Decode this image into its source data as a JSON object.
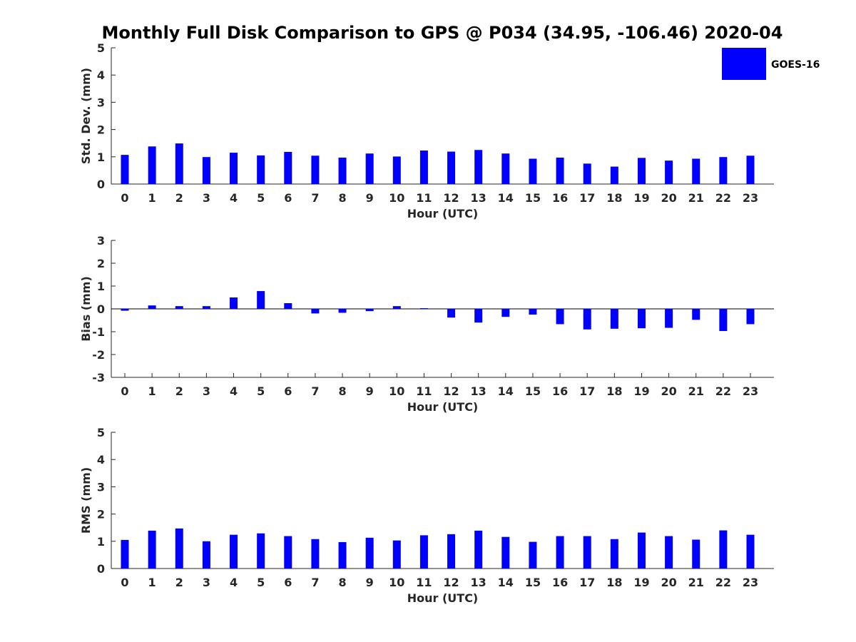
{
  "chart_data": {
    "title": "Monthly Full Disk Comparison to GPS @ P034 (34.95, -106.46) 2020-04",
    "legend": {
      "label": "GOES-16",
      "color": "#0000ff",
      "placement": "top-right"
    },
    "bar_color": "#0000ff",
    "panels": [
      {
        "type": "bar",
        "name": "std-dev",
        "xlabel": "Hour (UTC)",
        "ylabel": "Std. Dev. (mm)",
        "ylim": [
          0,
          5
        ],
        "yticks": [
          0,
          1,
          2,
          3,
          4,
          5
        ],
        "categories": [
          "0",
          "1",
          "2",
          "3",
          "4",
          "5",
          "6",
          "7",
          "8",
          "9",
          "10",
          "11",
          "12",
          "13",
          "14",
          "15",
          "16",
          "17",
          "18",
          "19",
          "20",
          "21",
          "22",
          "23"
        ],
        "values": [
          1.07,
          1.38,
          1.49,
          0.99,
          1.15,
          1.05,
          1.18,
          1.04,
          0.97,
          1.12,
          1.01,
          1.23,
          1.19,
          1.25,
          1.12,
          0.93,
          0.97,
          0.75,
          0.64,
          0.96,
          0.86,
          0.93,
          0.99,
          1.04
        ]
      },
      {
        "type": "bar",
        "name": "bias",
        "xlabel": "Hour (UTC)",
        "ylabel": "Bias (mm)",
        "ylim": [
          -3,
          3
        ],
        "yticks": [
          -3,
          -2,
          -1,
          0,
          1,
          2,
          3
        ],
        "categories": [
          "0",
          "1",
          "2",
          "3",
          "4",
          "5",
          "6",
          "7",
          "8",
          "9",
          "10",
          "11",
          "12",
          "13",
          "14",
          "15",
          "16",
          "17",
          "18",
          "19",
          "20",
          "21",
          "22",
          "23"
        ],
        "values": [
          -0.08,
          0.15,
          0.12,
          0.12,
          0.5,
          0.78,
          0.25,
          -0.2,
          -0.17,
          -0.1,
          0.12,
          0.03,
          -0.38,
          -0.6,
          -0.35,
          -0.25,
          -0.67,
          -0.9,
          -0.87,
          -0.85,
          -0.83,
          -0.48,
          -0.97,
          -0.67
        ]
      },
      {
        "type": "bar",
        "name": "rms",
        "xlabel": "Hour (UTC)",
        "ylabel": "RMS (mm)",
        "ylim": [
          0,
          5
        ],
        "yticks": [
          0,
          1,
          2,
          3,
          4,
          5
        ],
        "categories": [
          "0",
          "1",
          "2",
          "3",
          "4",
          "5",
          "6",
          "7",
          "8",
          "9",
          "10",
          "11",
          "12",
          "13",
          "14",
          "15",
          "16",
          "17",
          "18",
          "19",
          "20",
          "21",
          "22",
          "23"
        ],
        "values": [
          1.05,
          1.39,
          1.47,
          1.0,
          1.24,
          1.29,
          1.19,
          1.08,
          0.97,
          1.13,
          1.03,
          1.22,
          1.26,
          1.39,
          1.16,
          0.98,
          1.19,
          1.19,
          1.08,
          1.32,
          1.19,
          1.06,
          1.4,
          1.24
        ]
      }
    ]
  }
}
